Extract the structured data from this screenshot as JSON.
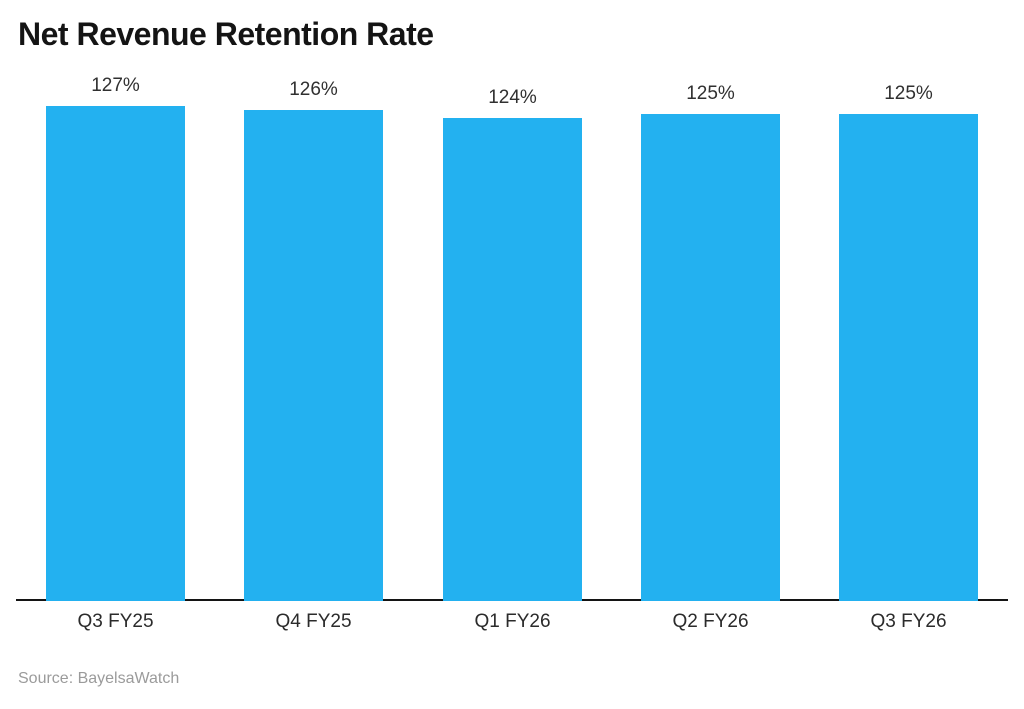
{
  "title": "Net Revenue Retention Rate",
  "source": "Source: BayelsaWatch",
  "colors": {
    "bar": "#23b1f0",
    "axis": "#141414",
    "title": "#141414",
    "value_label": "#303030",
    "category_label": "#2b2b2b",
    "source": "#9b9b9b",
    "background": "#ffffff"
  },
  "chart_data": {
    "type": "bar",
    "categories": [
      "Q3 FY25",
      "Q4 FY25",
      "Q1 FY26",
      "Q2 FY26",
      "Q3 FY26"
    ],
    "values": [
      127,
      126,
      124,
      125,
      125
    ],
    "value_labels": [
      "127%",
      "126%",
      "124%",
      "125%",
      "125%"
    ],
    "title": "Net Revenue Retention Rate",
    "xlabel": "",
    "ylabel": "",
    "ylim": [
      0,
      127
    ],
    "grid": false,
    "legend": null,
    "bar_labels_position": "above",
    "baseline_axis": true
  }
}
